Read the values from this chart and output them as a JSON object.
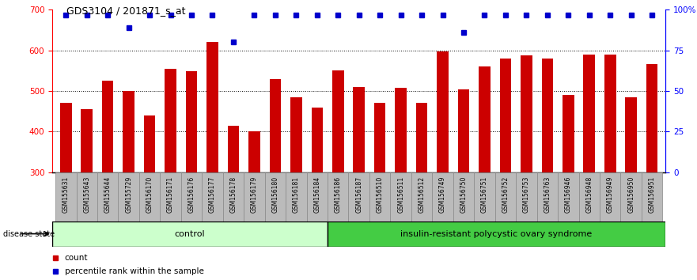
{
  "title": "GDS3104 / 201871_s_at",
  "categories": [
    "GSM155631",
    "GSM155643",
    "GSM155644",
    "GSM155729",
    "GSM156170",
    "GSM156171",
    "GSM156176",
    "GSM156177",
    "GSM156178",
    "GSM156179",
    "GSM156180",
    "GSM156181",
    "GSM156184",
    "GSM156186",
    "GSM156187",
    "GSM156510",
    "GSM156511",
    "GSM156512",
    "GSM156749",
    "GSM156750",
    "GSM156751",
    "GSM156752",
    "GSM156753",
    "GSM156763",
    "GSM156946",
    "GSM156948",
    "GSM156949",
    "GSM156950",
    "GSM156951"
  ],
  "bar_values": [
    470,
    455,
    525,
    500,
    440,
    555,
    548,
    620,
    415,
    400,
    530,
    485,
    460,
    550,
    510,
    470,
    508,
    470,
    597,
    504,
    560,
    580,
    588,
    580,
    490,
    590,
    590,
    485,
    567
  ],
  "percentile_values": [
    97,
    97,
    97,
    89,
    97,
    97,
    97,
    97,
    80,
    97,
    97,
    97,
    97,
    97,
    97,
    97,
    97,
    97,
    97,
    86,
    97,
    97,
    97,
    97,
    97,
    97,
    97,
    97,
    97
  ],
  "control_count": 13,
  "disease_group": "insulin-resistant polycystic ovary syndrome",
  "control_group": "control",
  "bar_color": "#cc0000",
  "dot_color": "#0000cc",
  "control_fill": "#ccffcc",
  "disease_fill": "#44cc44",
  "ylim_left": [
    300,
    700
  ],
  "ylim_right": [
    0,
    100
  ],
  "yticks_left": [
    300,
    400,
    500,
    600,
    700
  ],
  "yticks_right": [
    0,
    25,
    50,
    75,
    100
  ],
  "ytick_right_labels": [
    "0",
    "25",
    "50",
    "75",
    "100%"
  ],
  "grid_values": [
    400,
    500,
    600
  ],
  "legend_count_label": "count",
  "legend_pct_label": "percentile rank within the sample",
  "tick_bg_color": "#bbbbbb",
  "tick_border_color": "#888888"
}
